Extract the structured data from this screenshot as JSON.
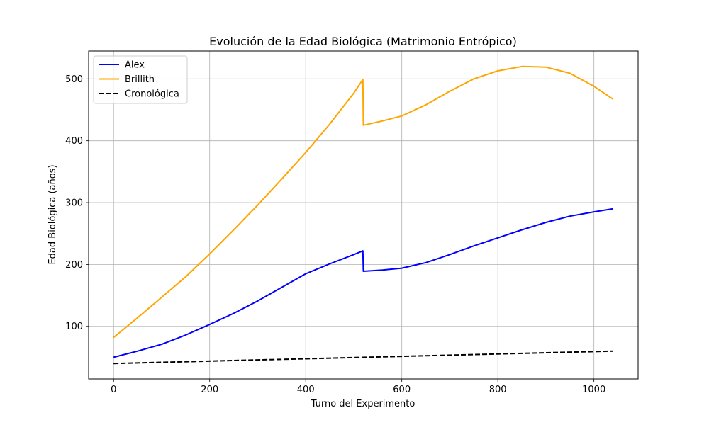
{
  "chart_data": {
    "type": "line",
    "title": "Evolución de la Edad Biológica (Matrimonio Entrópico)",
    "xlabel": "Turno del Experimento",
    "ylabel": "Edad Biológica (años)",
    "xlim": [
      -52,
      1092
    ],
    "ylim": [
      15,
      545
    ],
    "xticks": [
      0,
      200,
      400,
      600,
      800,
      1000
    ],
    "yticks": [
      100,
      200,
      300,
      400,
      500
    ],
    "grid": true,
    "legend_position": "top-left",
    "series": [
      {
        "name": "Alex",
        "color": "#0000ff",
        "dash": "solid",
        "points": [
          [
            0,
            50
          ],
          [
            50,
            60
          ],
          [
            100,
            71
          ],
          [
            150,
            86
          ],
          [
            200,
            103
          ],
          [
            250,
            121
          ],
          [
            300,
            141
          ],
          [
            350,
            163
          ],
          [
            400,
            185
          ],
          [
            450,
            201
          ],
          [
            500,
            216
          ],
          [
            519,
            222
          ],
          [
            520,
            189
          ],
          [
            560,
            191
          ],
          [
            600,
            194
          ],
          [
            650,
            203
          ],
          [
            700,
            216
          ],
          [
            750,
            230
          ],
          [
            800,
            243
          ],
          [
            850,
            256
          ],
          [
            900,
            268
          ],
          [
            950,
            278
          ],
          [
            1000,
            285
          ],
          [
            1040,
            290
          ]
        ]
      },
      {
        "name": "Brillith",
        "color": "#ffa500",
        "dash": "solid",
        "points": [
          [
            0,
            82
          ],
          [
            50,
            114
          ],
          [
            100,
            147
          ],
          [
            150,
            180
          ],
          [
            200,
            217
          ],
          [
            250,
            256
          ],
          [
            300,
            296
          ],
          [
            350,
            338
          ],
          [
            400,
            381
          ],
          [
            450,
            427
          ],
          [
            500,
            477
          ],
          [
            519,
            499
          ],
          [
            520,
            425
          ],
          [
            560,
            432
          ],
          [
            600,
            440
          ],
          [
            650,
            458
          ],
          [
            700,
            480
          ],
          [
            750,
            500
          ],
          [
            800,
            513
          ],
          [
            850,
            520
          ],
          [
            900,
            519
          ],
          [
            950,
            509
          ],
          [
            1000,
            488
          ],
          [
            1040,
            467
          ]
        ]
      },
      {
        "name": "Cronológica",
        "color": "#000000",
        "dash": "dashed",
        "points": [
          [
            0,
            40
          ],
          [
            1040,
            60
          ]
        ]
      }
    ]
  }
}
